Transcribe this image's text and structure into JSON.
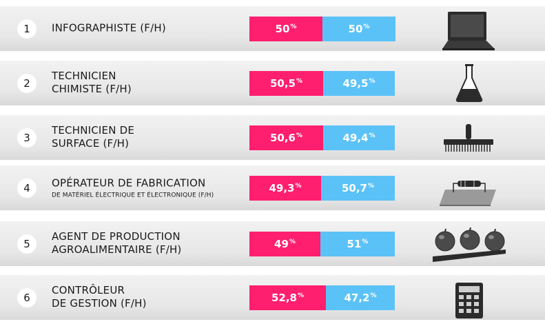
{
  "colors": {
    "women": "#ff1f6e",
    "men": "#5bc2f7",
    "icon": "#2b2b2b"
  },
  "percent_sign": "%",
  "chart_data": {
    "type": "bar",
    "orientation": "horizontal",
    "stacked": true,
    "xlim": [
      0,
      100
    ],
    "categories": [
      "INFOGRAPHISTE (F/H)",
      "TECHNICIEN CHIMISTE (F/H)",
      "TECHNICIEN DE SURFACE (F/H)",
      "OPÉRATEUR DE FABRICATION DE MATÉRIEL ÉLECTRIQUE ET ÉLECTRONIQUE (F/H)",
      "AGENT DE PRODUCTION AGROALIMENTAIRE (F/H)",
      "CONTRÔLEUR DE GESTION (F/H)"
    ],
    "series": [
      {
        "values": [
          50,
          50.5,
          50.6,
          49.3,
          49,
          52.8
        ]
      },
      {
        "values": [
          50,
          49.5,
          49.4,
          50.7,
          51,
          47.2
        ]
      }
    ]
  },
  "rows": [
    {
      "rank": "1",
      "title": "INFOGRAPHISTE (F/H)",
      "subtitle": "",
      "women_label": "50",
      "men_label": "50",
      "icon": "laptop-icon"
    },
    {
      "rank": "2",
      "title": "TECHNICIEN\nCHIMISTE (F/H)",
      "subtitle": "",
      "women_label": "50,5",
      "men_label": "49,5",
      "icon": "flask-icon"
    },
    {
      "rank": "3",
      "title": "TECHNICIEN DE\nSURFACE (F/H)",
      "subtitle": "",
      "women_label": "50,6",
      "men_label": "49,4",
      "icon": "broom-icon"
    },
    {
      "rank": "4",
      "title": "OPÉRATEUR DE FABRICATION",
      "subtitle": "DE MATÉRIEL ÉLECTRIQUE ET ÉLECTRONIQUE (F/H)",
      "women_label": "49,3",
      "men_label": "50,7",
      "icon": "circuit-board-icon"
    },
    {
      "rank": "5",
      "title": "AGENT DE PRODUCTION\nAGROALIMENTAIRE (F/H)",
      "subtitle": "",
      "women_label": "49",
      "men_label": "51",
      "icon": "apples-conveyor-icon"
    },
    {
      "rank": "6",
      "title": "CONTRÔLEUR\nDE GESTION (F/H)",
      "subtitle": "",
      "women_label": "52,8",
      "men_label": "47,2",
      "icon": "calculator-icon"
    }
  ]
}
